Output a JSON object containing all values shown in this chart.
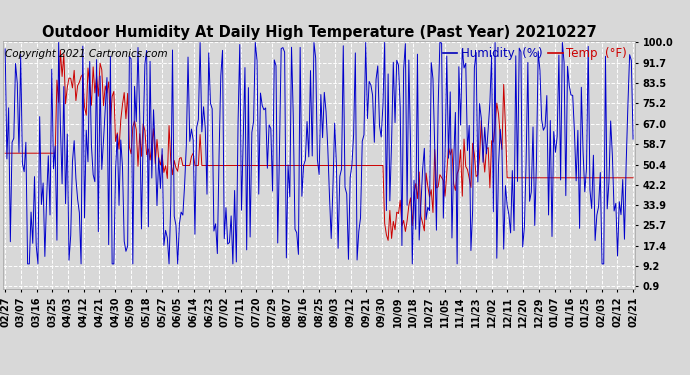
{
  "title": "Outdoor Humidity At Daily High Temperature (Past Year) 20210227",
  "copyright": "Copyright 2021 Cartronics.com",
  "legend_humidity": "Humidity  (%)",
  "legend_temp": "Temp  (°F)",
  "yticks": [
    0.9,
    9.2,
    17.4,
    25.7,
    33.9,
    42.2,
    50.4,
    58.7,
    67.0,
    75.2,
    83.5,
    91.7,
    100.0
  ],
  "xlabels": [
    "02/27",
    "03/07",
    "03/16",
    "03/25",
    "04/03",
    "04/12",
    "04/21",
    "04/30",
    "05/09",
    "05/18",
    "05/27",
    "06/05",
    "06/14",
    "06/23",
    "07/02",
    "07/11",
    "07/20",
    "07/29",
    "08/07",
    "08/16",
    "08/25",
    "09/03",
    "09/12",
    "09/21",
    "09/30",
    "10/09",
    "10/18",
    "10/27",
    "11/05",
    "11/14",
    "11/23",
    "12/02",
    "12/11",
    "12/20",
    "12/29",
    "01/07",
    "01/16",
    "01/25",
    "02/03",
    "02/12",
    "02/21"
  ],
  "n_points": 365,
  "background_color": "#d8d8d8",
  "plot_bg_color": "#d8d8d8",
  "grid_color": "#ffffff",
  "humidity_color": "#0000cc",
  "temp_color": "#cc0000",
  "title_color": "#000000",
  "copyright_color": "#000000",
  "legend_humidity_color": "#0000bb",
  "legend_temp_color": "#cc0000",
  "title_fontsize": 10.5,
  "copyright_fontsize": 7.5,
  "legend_fontsize": 8.5,
  "tick_fontsize": 7,
  "ylim_min": 0.9,
  "ylim_max": 100.0,
  "linewidth": 0.7
}
